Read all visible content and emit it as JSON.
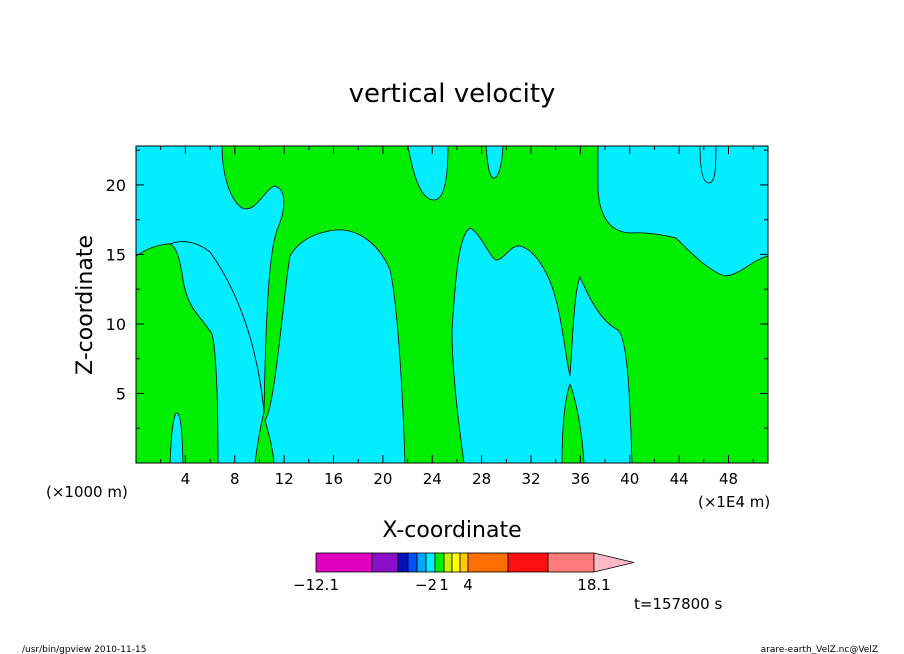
{
  "chart_data": {
    "type": "contour",
    "title": "vertical velocity",
    "xlabel": "X-coordinate",
    "ylabel": "Z-coordinate",
    "x_unit_left": "(×1000 m)",
    "x_unit_right": "(×1E4 m)",
    "xlim": [
      0,
      51.2
    ],
    "ylim": [
      0,
      22.8
    ],
    "x_ticks": [
      4,
      8,
      12,
      16,
      20,
      24,
      28,
      32,
      36,
      40,
      44,
      48
    ],
    "y_ticks": [
      5,
      10,
      15,
      20
    ],
    "grid": false,
    "regions": [
      {
        "level": "positive",
        "color": "#00ee00"
      },
      {
        "level": "negative",
        "color": "#00eeff"
      }
    ],
    "colorbar": {
      "colors": [
        "#e000c0",
        "#8a10c8",
        "#0a10b8",
        "#0050ff",
        "#00a8ff",
        "#00eeff",
        "#00ee00",
        "#c8f000",
        "#ffff00",
        "#ffc800",
        "#ff6e00",
        "#ff1010",
        "#ff7a7a",
        "#ffb8c8"
      ],
      "labels": [
        {
          "text": "−12.1",
          "value": -12.1
        },
        {
          "text": "−2",
          "value": -2
        },
        {
          "text": "1",
          "value": 1
        },
        {
          "text": "4",
          "value": 4
        },
        {
          "text": "18.1",
          "value": 18.1
        }
      ]
    },
    "time_label": "t=157800 s"
  },
  "footer": {
    "left": "/usr/bin/gpview   2010-11-15",
    "right": "arare-earth_VelZ.nc@VelZ"
  }
}
